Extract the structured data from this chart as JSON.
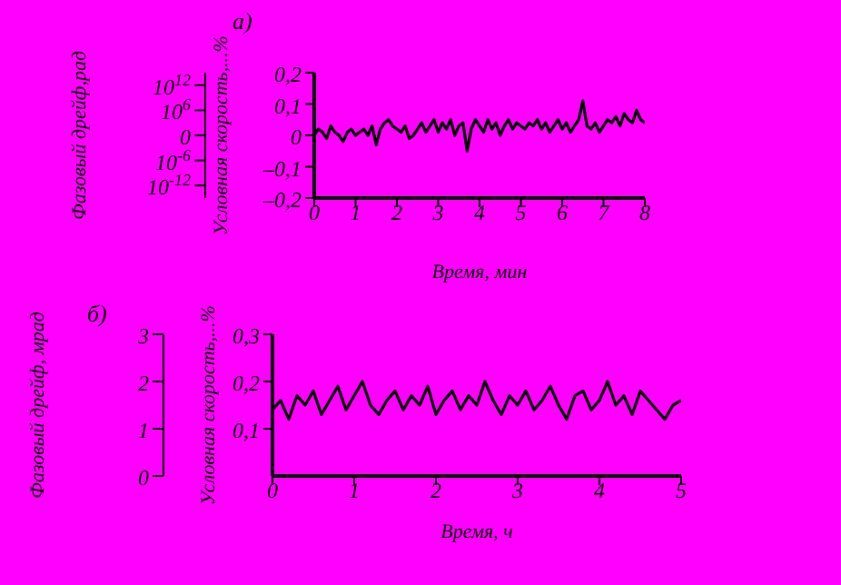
{
  "chart_data": [
    {
      "type": "line",
      "title": "а)",
      "xlabel": "Время, мин",
      "ylabel": "Условная скорость,...%",
      "y2label": "Фазовый дрейф,рад",
      "x": [
        0,
        0.1,
        0.2,
        0.3,
        0.4,
        0.5,
        0.6,
        0.7,
        0.8,
        0.9,
        1,
        1.1,
        1.2,
        1.3,
        1.4,
        1.5,
        1.6,
        1.7,
        1.8,
        1.9,
        2,
        2.1,
        2.2,
        2.3,
        2.4,
        2.5,
        2.6,
        2.7,
        2.8,
        2.9,
        3,
        3.1,
        3.2,
        3.3,
        3.4,
        3.5,
        3.6,
        3.7,
        3.8,
        3.9,
        4,
        4.1,
        4.2,
        4.3,
        4.4,
        4.5,
        4.6,
        4.7,
        4.8,
        4.9,
        5,
        5.1,
        5.2,
        5.3,
        5.4,
        5.5,
        5.6,
        5.7,
        5.8,
        5.9,
        6,
        6.1,
        6.2,
        6.3,
        6.4,
        6.5,
        6.6,
        6.7,
        6.8,
        6.9,
        7,
        7.1,
        7.2,
        7.3,
        7.4,
        7.5,
        7.6,
        7.7,
        7.8,
        7.9,
        8
      ],
      "series": [
        {
          "color": "#000000",
          "values": [
            0.0,
            0.02,
            0.01,
            -0.01,
            0.03,
            0.01,
            0.0,
            -0.02,
            0.01,
            0.02,
            0.0,
            0.01,
            0.02,
            0.0,
            0.03,
            -0.03,
            0.02,
            0.04,
            0.05,
            0.03,
            0.02,
            0.01,
            0.03,
            -0.01,
            0.0,
            0.02,
            0.04,
            0.01,
            0.03,
            0.05,
            0.01,
            0.04,
            0.02,
            0.05,
            0.0,
            0.03,
            0.04,
            -0.05,
            0.02,
            0.05,
            0.03,
            0.01,
            0.05,
            0.02,
            0.04,
            0.0,
            0.03,
            0.05,
            0.02,
            0.04,
            0.03,
            0.02,
            0.04,
            0.03,
            0.05,
            0.02,
            0.04,
            0.01,
            0.03,
            0.05,
            0.02,
            0.04,
            0.01,
            0.03,
            0.05,
            0.11,
            0.03,
            0.02,
            0.04,
            0.01,
            0.03,
            0.05,
            0.04,
            0.06,
            0.03,
            0.07,
            0.05,
            0.04,
            0.08,
            0.05,
            0.04
          ]
        }
      ],
      "xlim": [
        0,
        8
      ],
      "xticks": [
        0,
        1,
        2,
        3,
        4,
        5,
        6,
        7,
        8
      ],
      "ylim": [
        -0.2,
        0.2
      ],
      "yticks": [
        {
          "value": -0.2,
          "label": "–0,2"
        },
        {
          "value": -0.1,
          "label": "–0,1"
        },
        0,
        {
          "value": 0.1,
          "label": "0,1"
        },
        {
          "value": 0.2,
          "label": "0,2"
        }
      ],
      "y2_categories": [
        "10$^{12}$",
        "10$^{6}$",
        "0",
        "10$^{-6}$",
        "10$^{-12}$"
      ],
      "grid": false,
      "legend": false,
      "marker": "none",
      "line_style": "solid"
    },
    {
      "type": "line",
      "title": "б)",
      "xlabel": "Время, ч",
      "ylabel": "Условная скорость,...%",
      "y2label": "Фазовый дрейф, мрад",
      "x": [
        0,
        0.1,
        0.2,
        0.3,
        0.4,
        0.5,
        0.6,
        0.7,
        0.8,
        0.9,
        1,
        1.1,
        1.2,
        1.3,
        1.4,
        1.5,
        1.6,
        1.7,
        1.8,
        1.9,
        2,
        2.1,
        2.2,
        2.3,
        2.4,
        2.5,
        2.6,
        2.7,
        2.8,
        2.9,
        3,
        3.1,
        3.2,
        3.3,
        3.4,
        3.5,
        3.6,
        3.7,
        3.8,
        3.9,
        4,
        4.1,
        4.2,
        4.3,
        4.4,
        4.5,
        4.6,
        4.7,
        4.8,
        4.9,
        5
      ],
      "series": [
        {
          "color": "#000000",
          "values": [
            0.14,
            0.16,
            0.12,
            0.17,
            0.15,
            0.18,
            0.13,
            0.16,
            0.19,
            0.14,
            0.17,
            0.2,
            0.15,
            0.13,
            0.16,
            0.18,
            0.14,
            0.17,
            0.15,
            0.19,
            0.13,
            0.16,
            0.18,
            0.14,
            0.17,
            0.15,
            0.2,
            0.16,
            0.13,
            0.17,
            0.15,
            0.18,
            0.14,
            0.16,
            0.19,
            0.15,
            0.12,
            0.17,
            0.18,
            0.14,
            0.16,
            0.2,
            0.15,
            0.17,
            0.13,
            0.18,
            0.16,
            0.14,
            0.12,
            0.15,
            0.16
          ]
        }
      ],
      "xlim": [
        0,
        5
      ],
      "xticks": [
        0,
        1,
        2,
        3,
        4,
        5
      ],
      "ylim": [
        0,
        0.3
      ],
      "yticks": [
        {
          "value": 0.1,
          "label": "0,1"
        },
        {
          "value": 0.2,
          "label": "0,2"
        },
        {
          "value": 0.3,
          "label": "0,3"
        }
      ],
      "y2lim": [
        0,
        3
      ],
      "y2ticks": [
        0,
        1,
        2,
        3
      ],
      "grid": false,
      "legend": false,
      "marker": "none",
      "line_style": "solid"
    }
  ]
}
